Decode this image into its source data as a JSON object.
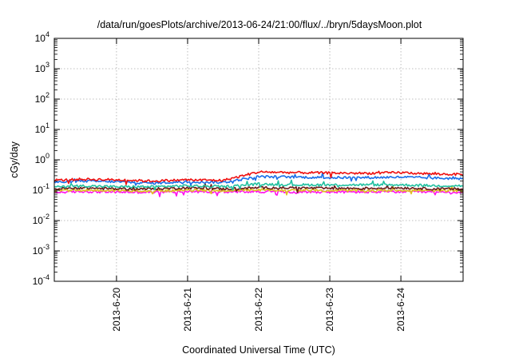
{
  "chart_data": {
    "type": "line",
    "title": "/data/run/goesPlots/archive/2013-06-24/21:00/flux/../bryn/5daysMoon.plot",
    "xlabel": "Coordinated Universal Time (UTC)",
    "ylabel": "cGy/day",
    "yscale": "log",
    "ylim": [
      0.0001,
      10000
    ],
    "xlim": [
      "2013-06-19 03:00",
      "2013-06-24 21:00"
    ],
    "grid": true,
    "legend": "none",
    "yticks": [
      {
        "base": "10",
        "exp": "-4"
      },
      {
        "base": "10",
        "exp": "-3"
      },
      {
        "base": "10",
        "exp": "-2"
      },
      {
        "base": "10",
        "exp": "-1"
      },
      {
        "base": "10",
        "exp": "0"
      },
      {
        "base": "10",
        "exp": "1"
      },
      {
        "base": "10",
        "exp": "2"
      },
      {
        "base": "10",
        "exp": "3"
      },
      {
        "base": "10",
        "exp": "4"
      }
    ],
    "xticks": [
      {
        "label": "2013-6-20",
        "date": "2013-06-20 00:00"
      },
      {
        "label": "2013-6-21",
        "date": "2013-06-21 00:00"
      },
      {
        "label": "2013-6-22",
        "date": "2013-06-22 00:00"
      },
      {
        "label": "2013-6-23",
        "date": "2013-06-23 00:00"
      },
      {
        "label": "2013-6-24",
        "date": "2013-06-24 00:00"
      }
    ],
    "series": [
      {
        "color": "#ee1111",
        "x": [
          "2013-06-19 03:00",
          "2013-06-19 12:00",
          "2013-06-20 00:00",
          "2013-06-20 12:00",
          "2013-06-21 00:00",
          "2013-06-21 12:00",
          "2013-06-22 00:00",
          "2013-06-22 12:00",
          "2013-06-23 00:00",
          "2013-06-23 12:00",
          "2013-06-24 00:00",
          "2013-06-24 12:00",
          "2013-06-24 21:00"
        ],
        "y": [
          0.21,
          0.23,
          0.22,
          0.2,
          0.22,
          0.21,
          0.4,
          0.38,
          0.37,
          0.36,
          0.38,
          0.34,
          0.33
        ]
      },
      {
        "color": "#1a6ee8",
        "x": [
          "2013-06-19 03:00",
          "2013-06-19 12:00",
          "2013-06-20 00:00",
          "2013-06-20 12:00",
          "2013-06-21 00:00",
          "2013-06-21 12:00",
          "2013-06-22 00:00",
          "2013-06-22 12:00",
          "2013-06-23 00:00",
          "2013-06-23 12:00",
          "2013-06-24 00:00",
          "2013-06-24 12:00",
          "2013-06-24 21:00"
        ],
        "y": [
          0.18,
          0.2,
          0.19,
          0.17,
          0.19,
          0.18,
          0.28,
          0.27,
          0.26,
          0.26,
          0.27,
          0.25,
          0.24
        ]
      },
      {
        "color": "#22c0a0",
        "x": [
          "2013-06-19 03:00",
          "2013-06-19 12:00",
          "2013-06-20 00:00",
          "2013-06-20 12:00",
          "2013-06-21 00:00",
          "2013-06-21 12:00",
          "2013-06-22 00:00",
          "2013-06-22 12:00",
          "2013-06-23 00:00",
          "2013-06-23 12:00",
          "2013-06-24 00:00",
          "2013-06-24 12:00",
          "2013-06-24 21:00"
        ],
        "y": [
          0.13,
          0.14,
          0.13,
          0.13,
          0.14,
          0.13,
          0.16,
          0.15,
          0.15,
          0.15,
          0.15,
          0.14,
          0.14
        ]
      },
      {
        "color": "#6a1a1a",
        "x": [
          "2013-06-19 03:00",
          "2013-06-19 12:00",
          "2013-06-20 00:00",
          "2013-06-20 12:00",
          "2013-06-21 00:00",
          "2013-06-21 12:00",
          "2013-06-22 00:00",
          "2013-06-22 12:00",
          "2013-06-23 00:00",
          "2013-06-23 12:00",
          "2013-06-24 00:00",
          "2013-06-24 12:00",
          "2013-06-24 21:00"
        ],
        "y": [
          0.11,
          0.12,
          0.11,
          0.11,
          0.12,
          0.11,
          0.12,
          0.12,
          0.115,
          0.115,
          0.12,
          0.11,
          0.11
        ]
      },
      {
        "color": "#e0c020",
        "x": [
          "2013-06-19 03:00",
          "2013-06-19 12:00",
          "2013-06-20 00:00",
          "2013-06-20 12:00",
          "2013-06-21 00:00",
          "2013-06-21 12:00",
          "2013-06-22 00:00",
          "2013-06-22 12:00",
          "2013-06-23 00:00",
          "2013-06-23 12:00",
          "2013-06-24 00:00",
          "2013-06-24 12:00",
          "2013-06-24 21:00"
        ],
        "y": [
          0.095,
          0.1,
          0.097,
          0.095,
          0.1,
          0.097,
          0.1,
          0.098,
          0.097,
          0.097,
          0.099,
          0.096,
          0.095
        ]
      },
      {
        "color": "#ff11ee",
        "x": [
          "2013-06-19 03:00",
          "2013-06-19 12:00",
          "2013-06-20 00:00",
          "2013-06-20 12:00",
          "2013-06-21 00:00",
          "2013-06-21 12:00",
          "2013-06-22 00:00",
          "2013-06-22 12:00",
          "2013-06-23 00:00",
          "2013-06-23 12:00",
          "2013-06-24 00:00",
          "2013-06-24 12:00",
          "2013-06-24 21:00"
        ],
        "y": [
          0.085,
          0.09,
          0.087,
          0.085,
          0.09,
          0.087,
          0.09,
          0.088,
          0.087,
          0.087,
          0.089,
          0.086,
          0.085
        ]
      }
    ]
  }
}
